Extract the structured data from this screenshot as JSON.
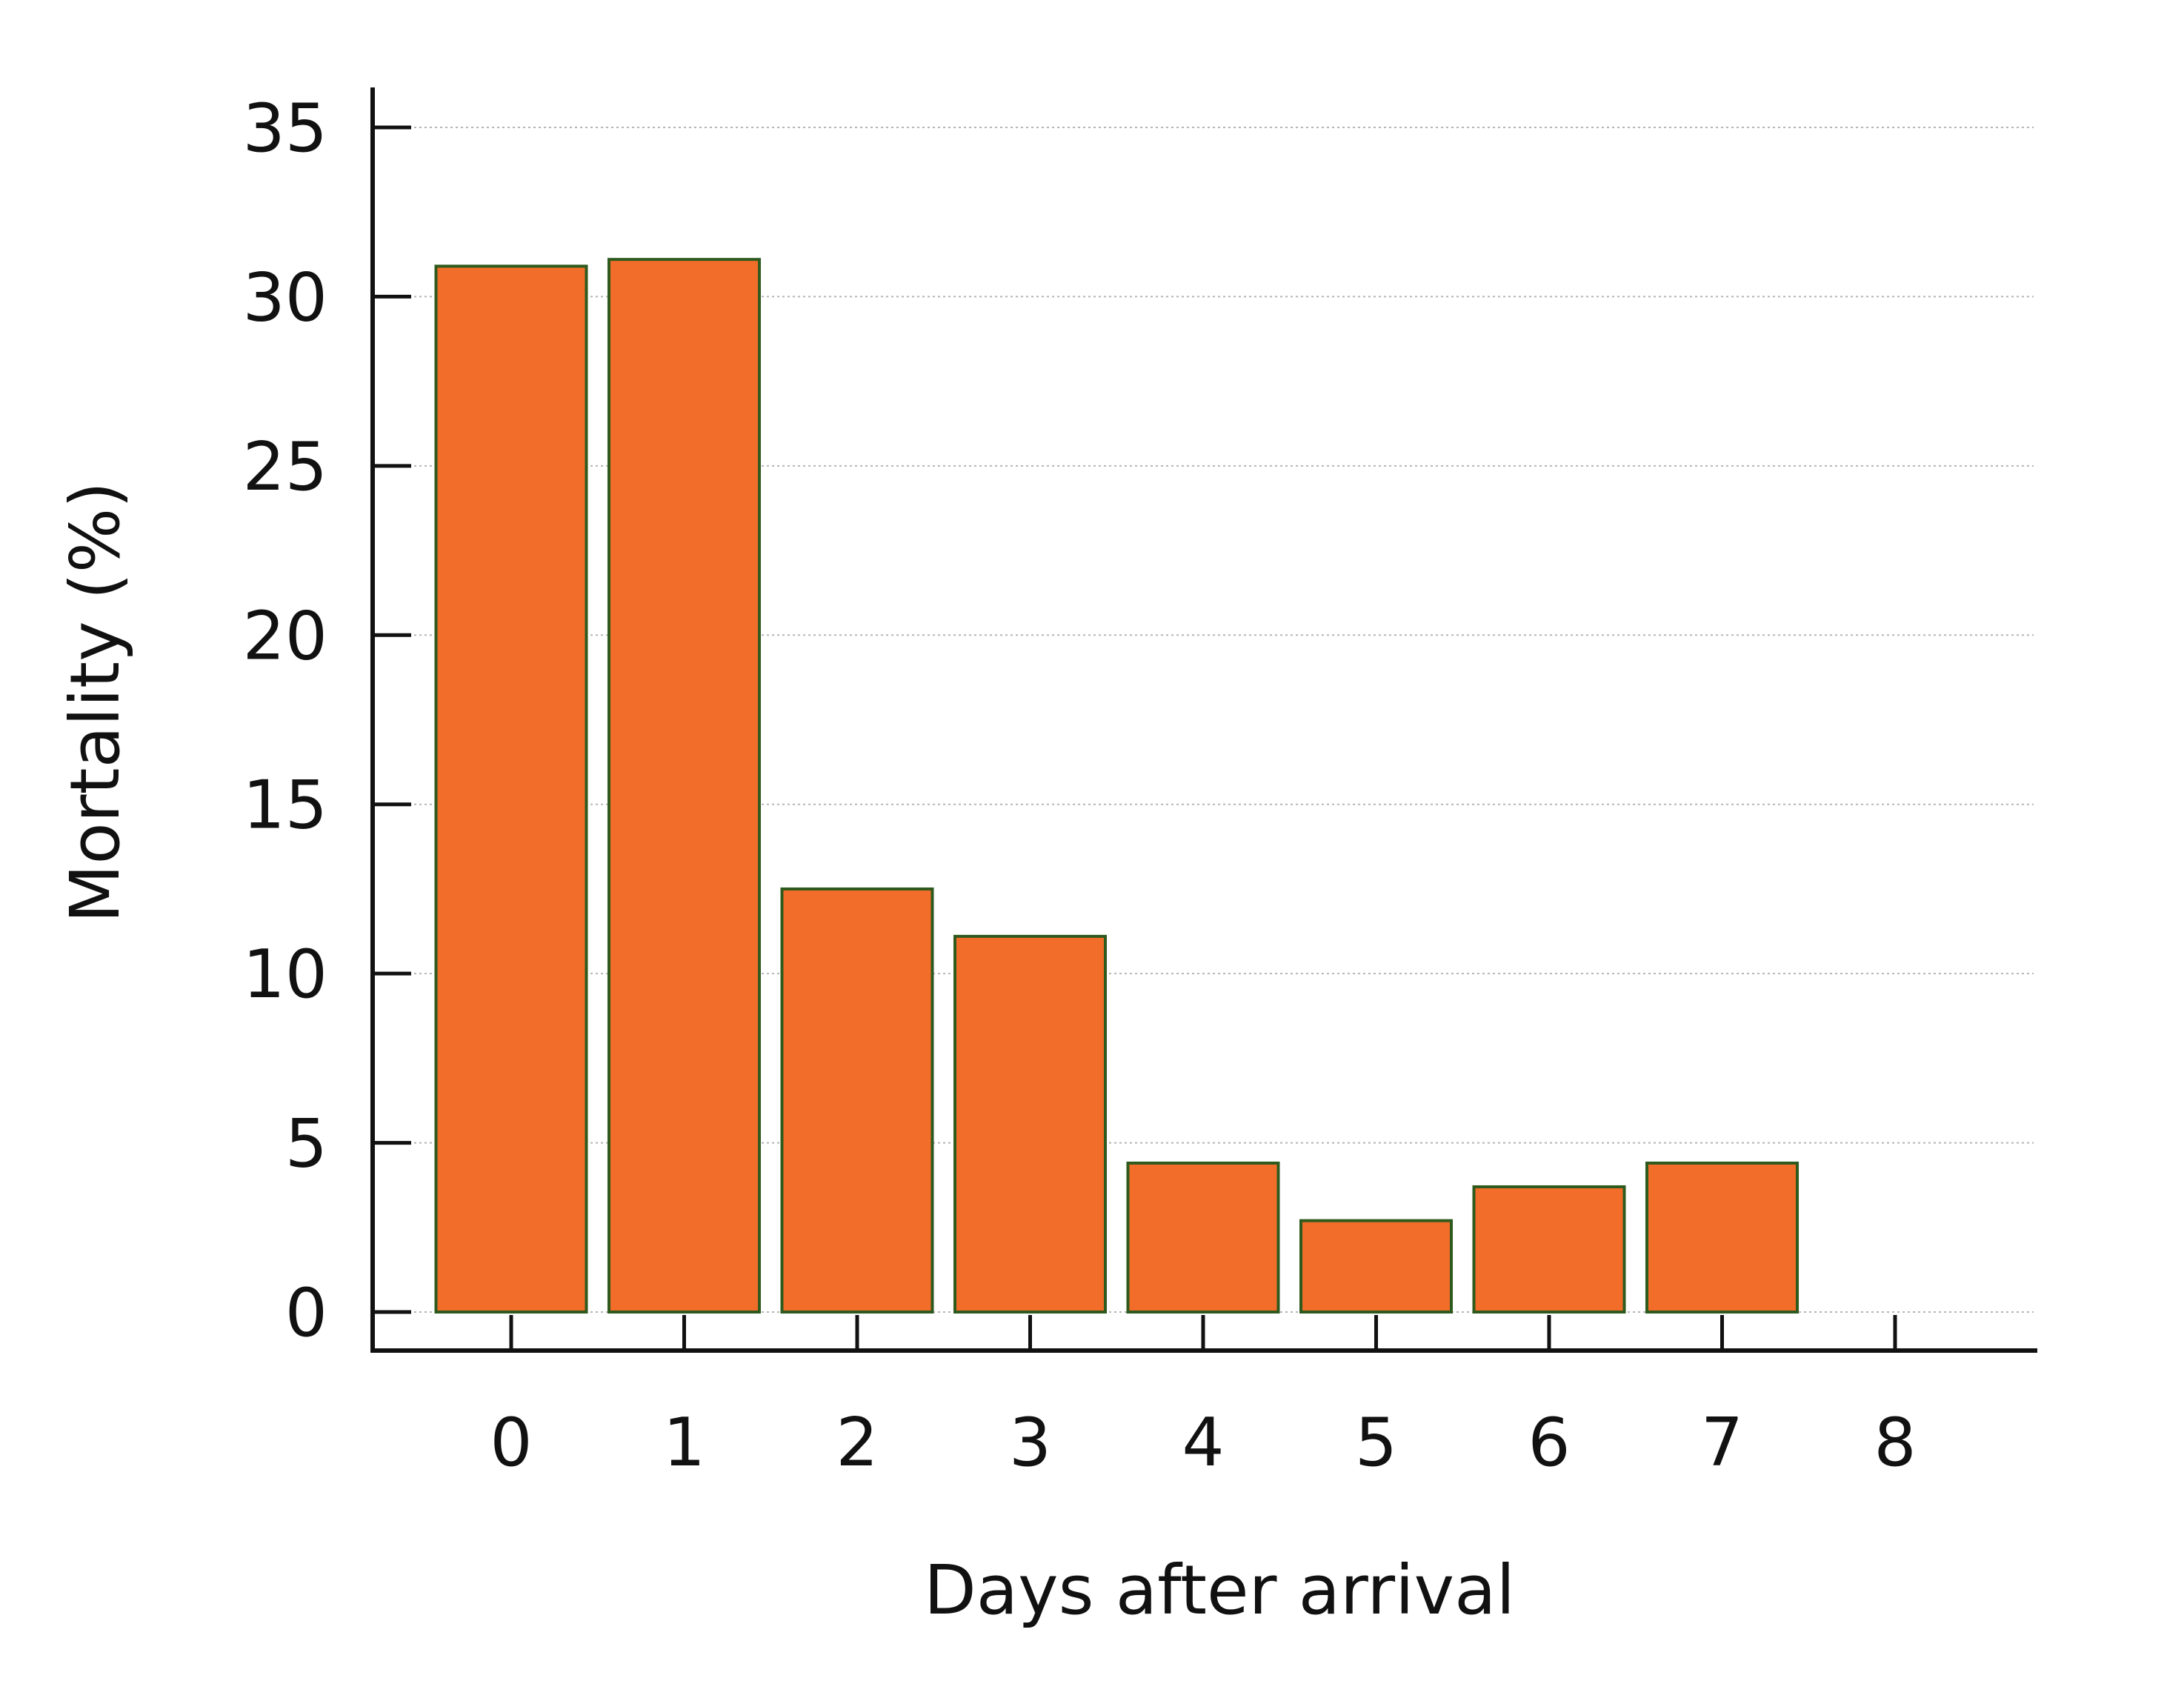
{
  "chart_data": {
    "type": "bar",
    "title": "",
    "xlabel": "Days after arrival",
    "ylabel": "Mortality (%)",
    "categories": [
      "0",
      "1",
      "2",
      "3",
      "4",
      "5",
      "6",
      "7",
      "8"
    ],
    "values": [
      30.9,
      31.1,
      12.5,
      11.1,
      4.4,
      2.7,
      3.7,
      4.4,
      0
    ],
    "ylim": [
      0,
      35
    ],
    "yticks": [
      0,
      5,
      10,
      15,
      20,
      25,
      30,
      35
    ],
    "ytick_labels": [
      "0",
      "5",
      "10",
      "15",
      "20",
      "25",
      "30",
      "35"
    ],
    "grid": "horizontal dotted",
    "legend": "none",
    "colors": {
      "bar_fill": "#F26D2A",
      "bar_stroke": "#2E5A1E",
      "axis": "#111111",
      "grid": "#B5B5B5"
    }
  }
}
